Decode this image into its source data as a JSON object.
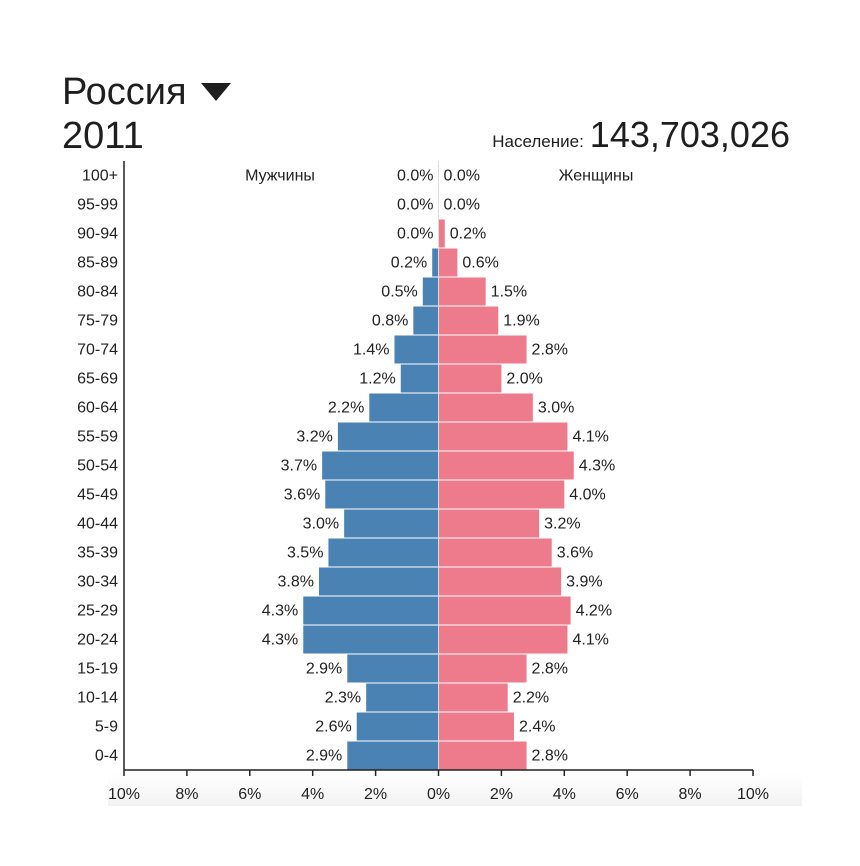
{
  "header": {
    "country": "Россия",
    "year": "2011",
    "population_label": "Население:",
    "population_value": "143,703,026"
  },
  "chart_data": {
    "type": "bar",
    "subtype": "population-pyramid",
    "categories": [
      "100+",
      "95-99",
      "90-94",
      "85-89",
      "80-84",
      "75-79",
      "70-74",
      "65-69",
      "60-64",
      "55-59",
      "50-54",
      "45-49",
      "40-44",
      "35-39",
      "30-34",
      "25-29",
      "20-24",
      "15-19",
      "10-14",
      "5-9",
      "0-4"
    ],
    "series": [
      {
        "name": "Мужчины",
        "color": "#4a82b4",
        "values": [
          0.0,
          0.0,
          0.0,
          0.2,
          0.5,
          0.8,
          1.4,
          1.2,
          2.2,
          3.2,
          3.7,
          3.6,
          3.0,
          3.5,
          3.8,
          4.3,
          4.3,
          2.9,
          2.3,
          2.6,
          2.9
        ],
        "labels": [
          "0.0%",
          "0.0%",
          "0.0%",
          "0.2%",
          "0.5%",
          "0.8%",
          "1.4%",
          "1.2%",
          "2.2%",
          "3.2%",
          "3.7%",
          "3.6%",
          "3.0%",
          "3.5%",
          "3.8%",
          "4.3%",
          "4.3%",
          "2.9%",
          "2.3%",
          "2.6%",
          "2.9%"
        ]
      },
      {
        "name": "Женщины",
        "color": "#ee7b8c",
        "values": [
          0.0,
          0.0,
          0.2,
          0.6,
          1.5,
          1.9,
          2.8,
          2.0,
          3.0,
          4.1,
          4.3,
          4.0,
          3.2,
          3.6,
          3.9,
          4.2,
          4.1,
          2.8,
          2.2,
          2.4,
          2.8
        ],
        "labels": [
          "0.0%",
          "0.0%",
          "0.2%",
          "0.6%",
          "1.5%",
          "1.9%",
          "2.8%",
          "2.0%",
          "3.0%",
          "4.1%",
          "4.3%",
          "4.0%",
          "3.2%",
          "3.6%",
          "3.9%",
          "4.2%",
          "4.1%",
          "2.8%",
          "2.2%",
          "2.4%",
          "2.8%"
        ]
      }
    ],
    "xlim": [
      -10,
      10
    ],
    "xticks": [
      "10%",
      "8%",
      "6%",
      "4%",
      "2%",
      "0%",
      "2%",
      "4%",
      "6%",
      "8%",
      "10%"
    ],
    "grid": false,
    "legend": "top, inside plot, left and right of center"
  }
}
